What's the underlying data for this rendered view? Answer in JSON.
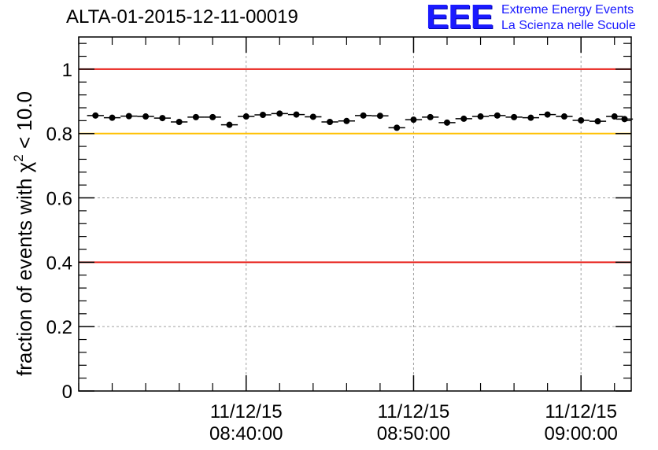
{
  "header": {
    "title": "ALTA-01-2015-12-11-00019",
    "logo": {
      "mark": "EEE",
      "line1": "Extreme Energy Events",
      "line2": "La Scienza nelle Scuole"
    }
  },
  "chart_data": {
    "type": "scatter",
    "title": "ALTA-01-2015-12-11-00019",
    "ylabel_parts": {
      "base": "fraction of events with χ",
      "sup": "2",
      "tail": " < 10.0"
    },
    "xlabel": "",
    "ylim": [
      0,
      1.1
    ],
    "xlim_minutes": [
      -10.0,
      23.0
    ],
    "grid": true,
    "x_ticks": [
      {
        "date": "11/12/15",
        "time": "08:40:00",
        "minute": 0
      },
      {
        "date": "11/12/15",
        "time": "08:50:00",
        "minute": 10
      },
      {
        "date": "11/12/15",
        "time": "09:00:00",
        "minute": 20
      }
    ],
    "y_ticks": [
      {
        "value": 0,
        "label": "0"
      },
      {
        "value": 0.2,
        "label": "0.2"
      },
      {
        "value": 0.4,
        "label": "0.4"
      },
      {
        "value": 0.6,
        "label": "0.6"
      },
      {
        "value": 0.8,
        "label": "0.8"
      },
      {
        "value": 1.0,
        "label": "1"
      }
    ],
    "reference_lines": [
      {
        "y": 1.0,
        "color": "#e8201a"
      },
      {
        "y": 0.8,
        "color": "#ffc000"
      },
      {
        "y": 0.4,
        "color": "#e8201a"
      }
    ],
    "bin_width_minutes": 1.0,
    "series": [
      {
        "color": "#000000",
        "points": [
          {
            "x": -9.0,
            "y": 0.856
          },
          {
            "x": -8.0,
            "y": 0.849
          },
          {
            "x": -7.0,
            "y": 0.854
          },
          {
            "x": -6.0,
            "y": 0.853
          },
          {
            "x": -5.0,
            "y": 0.848
          },
          {
            "x": -4.0,
            "y": 0.836
          },
          {
            "x": -3.0,
            "y": 0.851
          },
          {
            "x": -2.0,
            "y": 0.851
          },
          {
            "x": -1.0,
            "y": 0.827
          },
          {
            "x": 0.0,
            "y": 0.853
          },
          {
            "x": 1.0,
            "y": 0.858
          },
          {
            "x": 2.0,
            "y": 0.862
          },
          {
            "x": 3.0,
            "y": 0.859
          },
          {
            "x": 4.0,
            "y": 0.852
          },
          {
            "x": 5.0,
            "y": 0.836
          },
          {
            "x": 6.0,
            "y": 0.839
          },
          {
            "x": 7.0,
            "y": 0.856
          },
          {
            "x": 8.0,
            "y": 0.855
          },
          {
            "x": 9.0,
            "y": 0.818
          },
          {
            "x": 10.0,
            "y": 0.843
          },
          {
            "x": 11.0,
            "y": 0.851
          },
          {
            "x": 12.0,
            "y": 0.834
          },
          {
            "x": 13.0,
            "y": 0.846
          },
          {
            "x": 14.0,
            "y": 0.853
          },
          {
            "x": 15.0,
            "y": 0.856
          },
          {
            "x": 16.0,
            "y": 0.851
          },
          {
            "x": 17.0,
            "y": 0.849
          },
          {
            "x": 18.0,
            "y": 0.859
          },
          {
            "x": 19.0,
            "y": 0.853
          },
          {
            "x": 20.0,
            "y": 0.841
          },
          {
            "x": 21.0,
            "y": 0.838
          },
          {
            "x": 22.0,
            "y": 0.853
          },
          {
            "x": 22.6,
            "y": 0.845
          }
        ]
      }
    ]
  }
}
